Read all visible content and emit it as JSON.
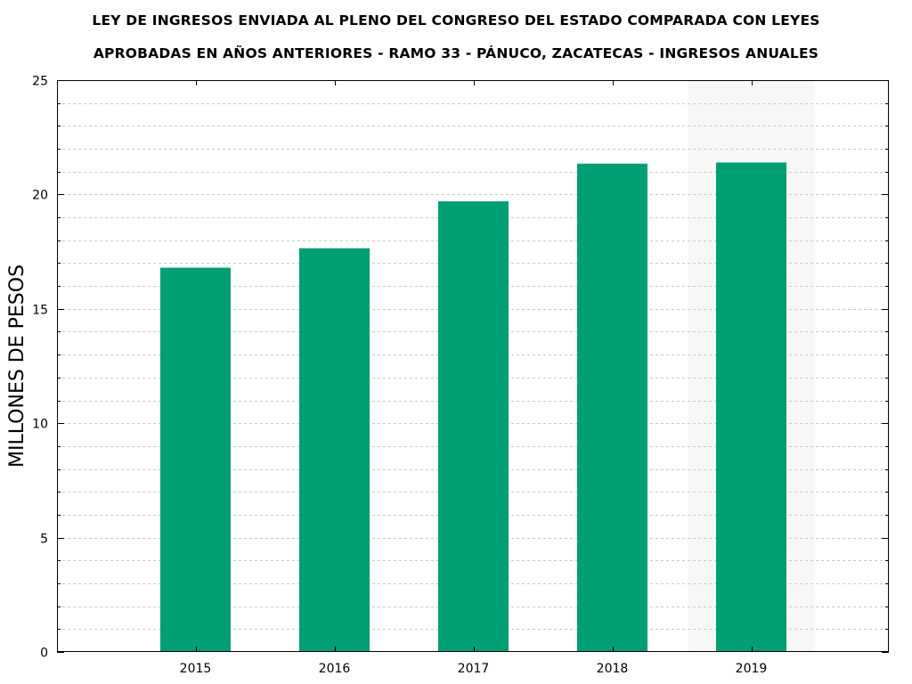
{
  "chart_data": {
    "type": "bar",
    "title_lines": [
      "LEY DE INGRESOS ENVIADA AL PLENO DEL CONGRESO DEL ESTADO COMPARADA CON LEYES",
      "APROBADAS EN AÑOS ANTERIORES - RAMO 33 - PÁNUCO, ZACATECAS - INGRESOS ANUALES"
    ],
    "xlabel": "",
    "ylabel": "MILLONES DE PESOS",
    "categories": [
      "2015",
      "2016",
      "2017",
      "2018",
      "2019"
    ],
    "values": [
      16.8,
      17.65,
      19.7,
      21.35,
      21.4
    ],
    "ylim": [
      0,
      25
    ],
    "yticks": [
      0,
      5,
      10,
      15,
      20,
      25
    ],
    "minor_grid_step": 1,
    "grid": true,
    "bar_color": "#009e73",
    "highlight_category": "2019",
    "highlight_color": "#f7f7f7"
  }
}
